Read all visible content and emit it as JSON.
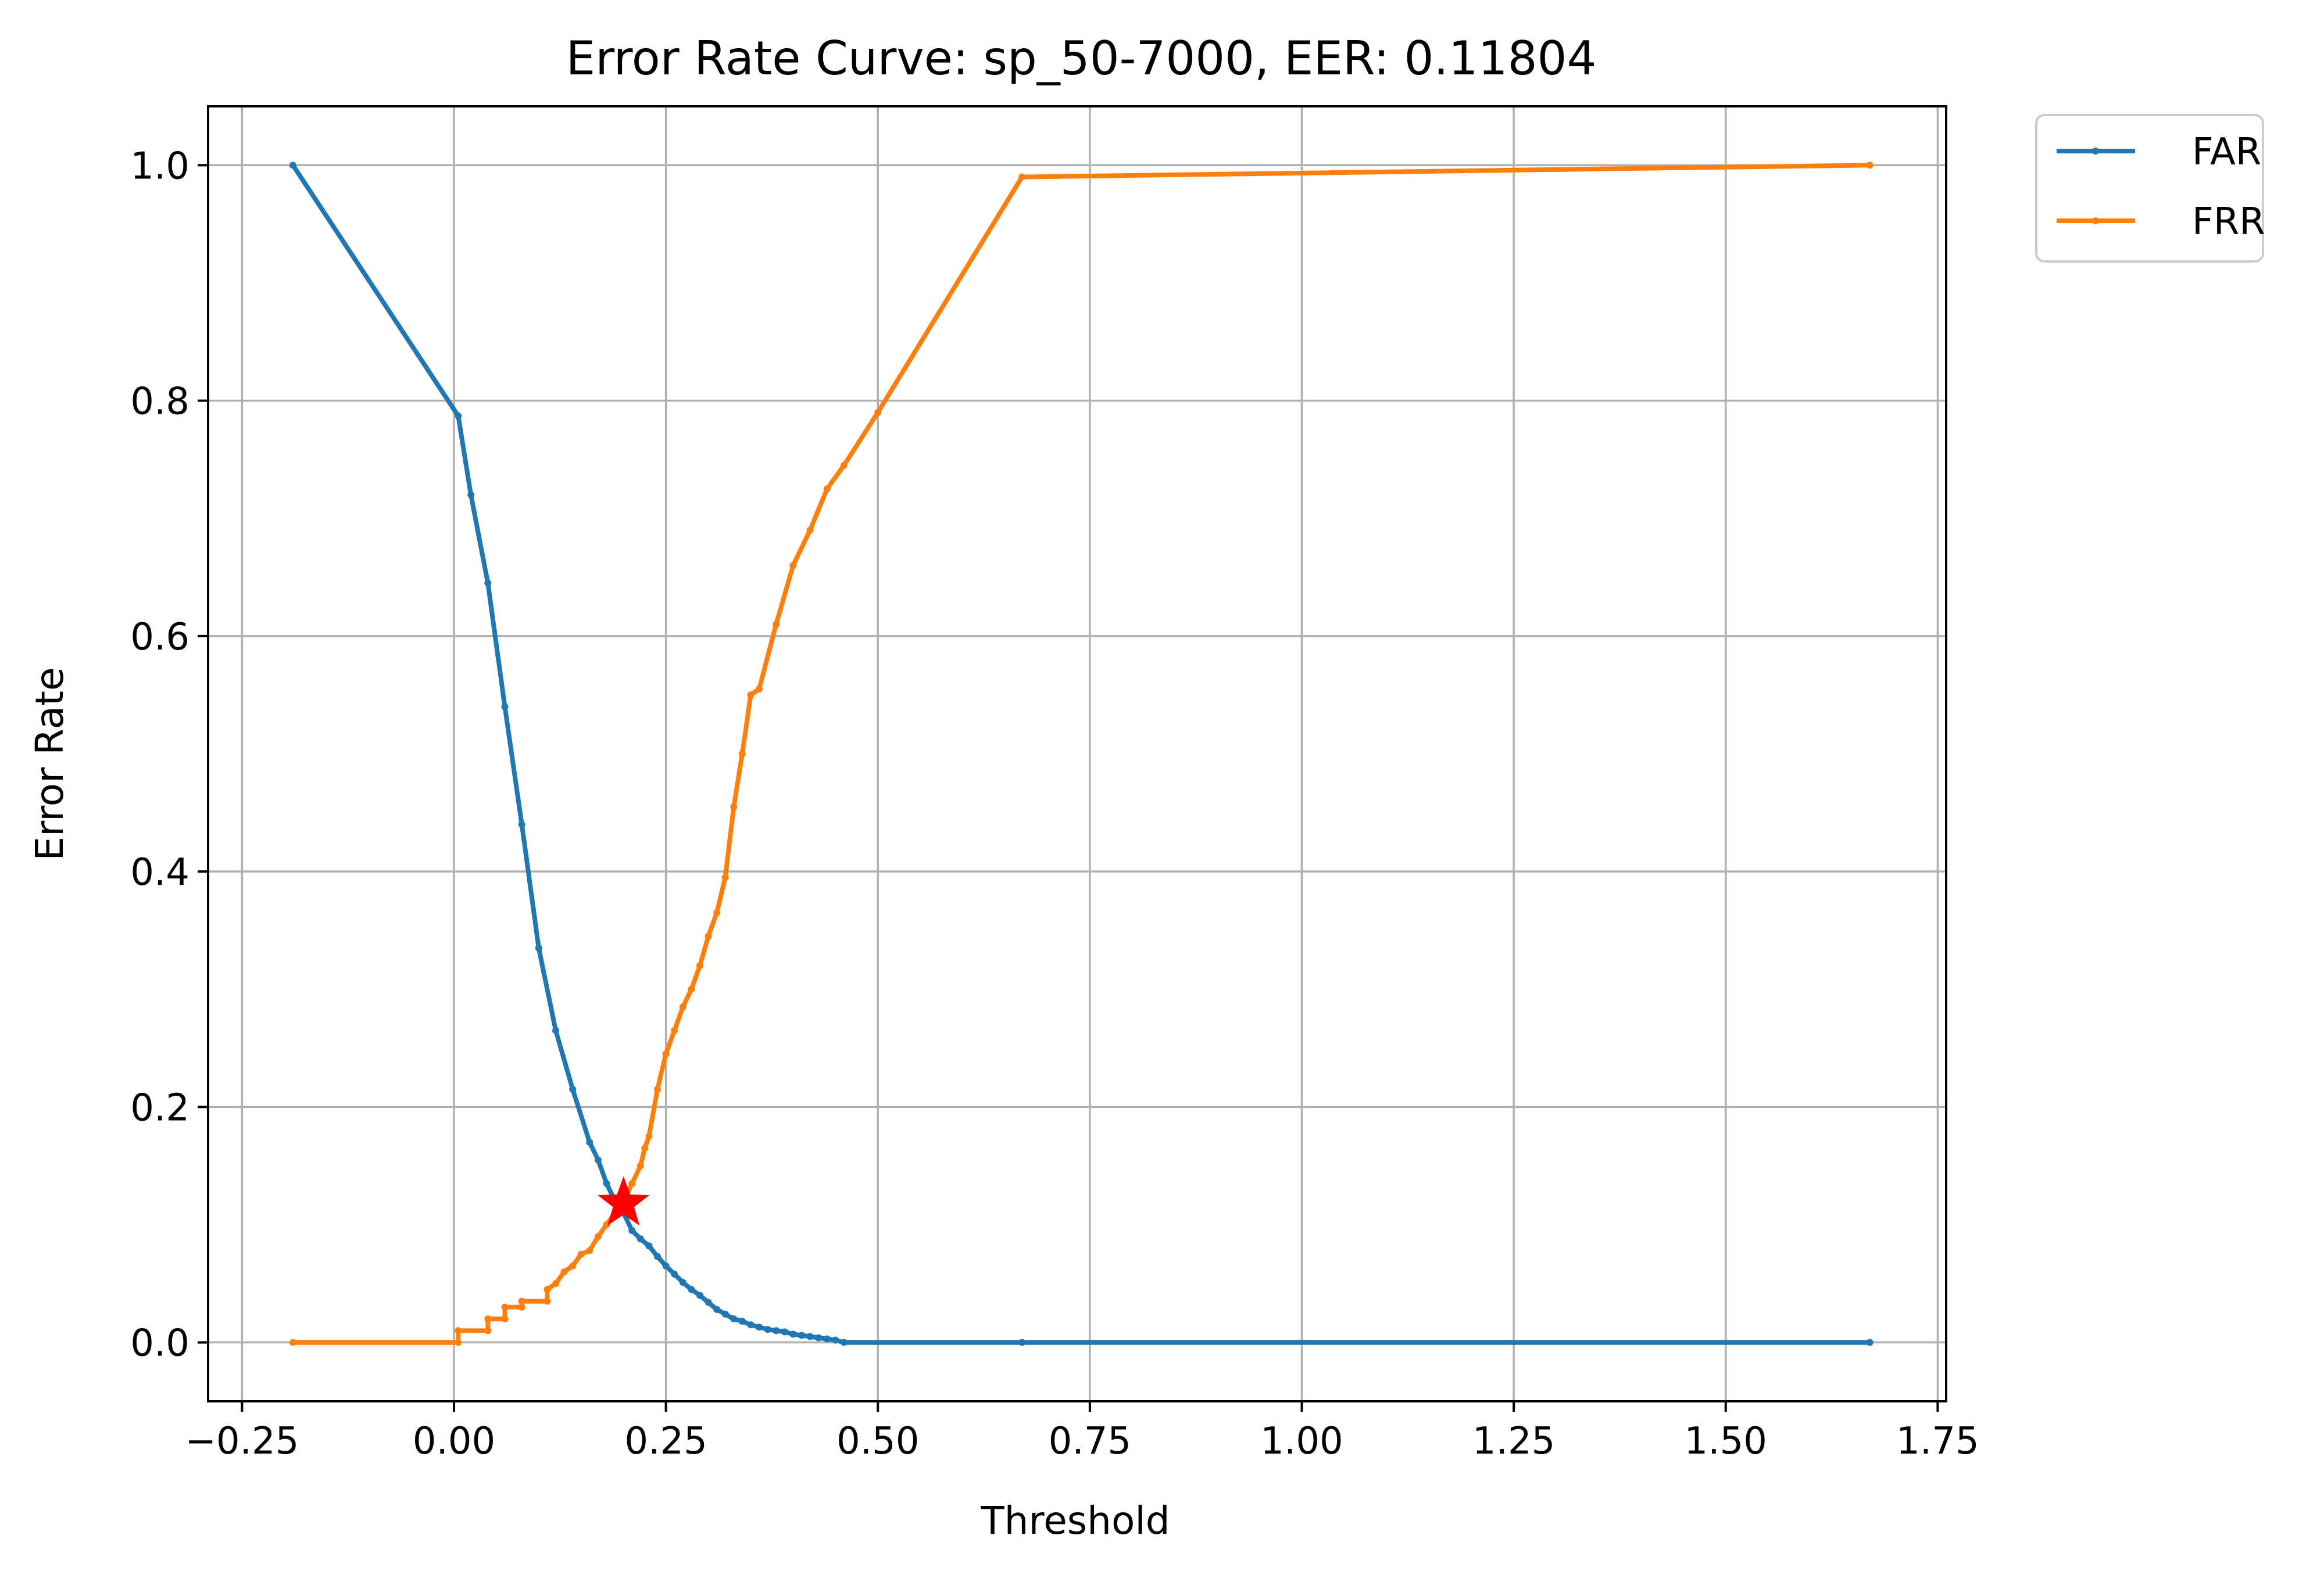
{
  "chart_data": {
    "type": "line",
    "title": "Error Rate Curve: sp_50-7000, EER: 0.11804",
    "xlabel": "Threshold",
    "ylabel": "Error Rate",
    "xlim": [
      -0.29,
      1.76
    ],
    "ylim": [
      -0.05,
      1.05
    ],
    "xticks": [
      -0.25,
      0.0,
      0.25,
      0.5,
      0.75,
      1.0,
      1.25,
      1.5,
      1.75
    ],
    "xtick_labels": [
      "−0.25",
      "0.00",
      "0.25",
      "0.50",
      "0.75",
      "1.00",
      "1.25",
      "1.50",
      "1.75"
    ],
    "yticks": [
      0.0,
      0.2,
      0.4,
      0.6,
      0.8,
      1.0
    ],
    "ytick_labels": [
      "0.0",
      "0.2",
      "0.4",
      "0.6",
      "0.8",
      "1.0"
    ],
    "grid": true,
    "legend_position": "outside-top-right",
    "series": [
      {
        "name": "FAR",
        "color": "#1f77b4",
        "x": [
          -0.19,
          0.005,
          0.02,
          0.04,
          0.06,
          0.08,
          0.1,
          0.12,
          0.14,
          0.16,
          0.17,
          0.18,
          0.19,
          0.2,
          0.21,
          0.22,
          0.23,
          0.24,
          0.25,
          0.26,
          0.27,
          0.28,
          0.29,
          0.3,
          0.31,
          0.32,
          0.33,
          0.34,
          0.35,
          0.36,
          0.37,
          0.38,
          0.39,
          0.4,
          0.41,
          0.42,
          0.43,
          0.44,
          0.45,
          0.46,
          0.67,
          1.67
        ],
        "y": [
          1.0,
          0.787,
          0.72,
          0.645,
          0.54,
          0.44,
          0.335,
          0.265,
          0.215,
          0.17,
          0.155,
          0.135,
          0.12,
          0.11,
          0.095,
          0.088,
          0.082,
          0.073,
          0.065,
          0.058,
          0.051,
          0.045,
          0.04,
          0.034,
          0.028,
          0.024,
          0.02,
          0.018,
          0.015,
          0.013,
          0.011,
          0.01,
          0.009,
          0.007,
          0.006,
          0.005,
          0.004,
          0.003,
          0.002,
          0.0,
          0.0,
          0.0
        ]
      },
      {
        "name": "FRR",
        "color": "#ff7f0e",
        "x": [
          -0.19,
          0.005,
          0.005,
          0.04,
          0.04,
          0.06,
          0.06,
          0.08,
          0.08,
          0.11,
          0.11,
          0.12,
          0.13,
          0.14,
          0.15,
          0.16,
          0.17,
          0.18,
          0.19,
          0.2,
          0.21,
          0.22,
          0.225,
          0.23,
          0.24,
          0.25,
          0.26,
          0.27,
          0.28,
          0.29,
          0.3,
          0.31,
          0.32,
          0.33,
          0.34,
          0.35,
          0.36,
          0.38,
          0.4,
          0.42,
          0.44,
          0.46,
          0.5,
          0.67,
          1.67
        ],
        "y": [
          0.0,
          0.0,
          0.01,
          0.01,
          0.02,
          0.02,
          0.03,
          0.03,
          0.035,
          0.035,
          0.045,
          0.05,
          0.06,
          0.065,
          0.075,
          0.078,
          0.09,
          0.1,
          0.11,
          0.12,
          0.135,
          0.15,
          0.165,
          0.175,
          0.215,
          0.245,
          0.265,
          0.285,
          0.3,
          0.32,
          0.345,
          0.365,
          0.395,
          0.455,
          0.5,
          0.55,
          0.555,
          0.61,
          0.66,
          0.69,
          0.725,
          0.745,
          0.79,
          0.99,
          1.0
        ]
      }
    ],
    "annotations": [
      {
        "type": "marker",
        "shape": "star",
        "color": "#ff0000",
        "x": 0.2,
        "y": 0.118
      }
    ]
  }
}
